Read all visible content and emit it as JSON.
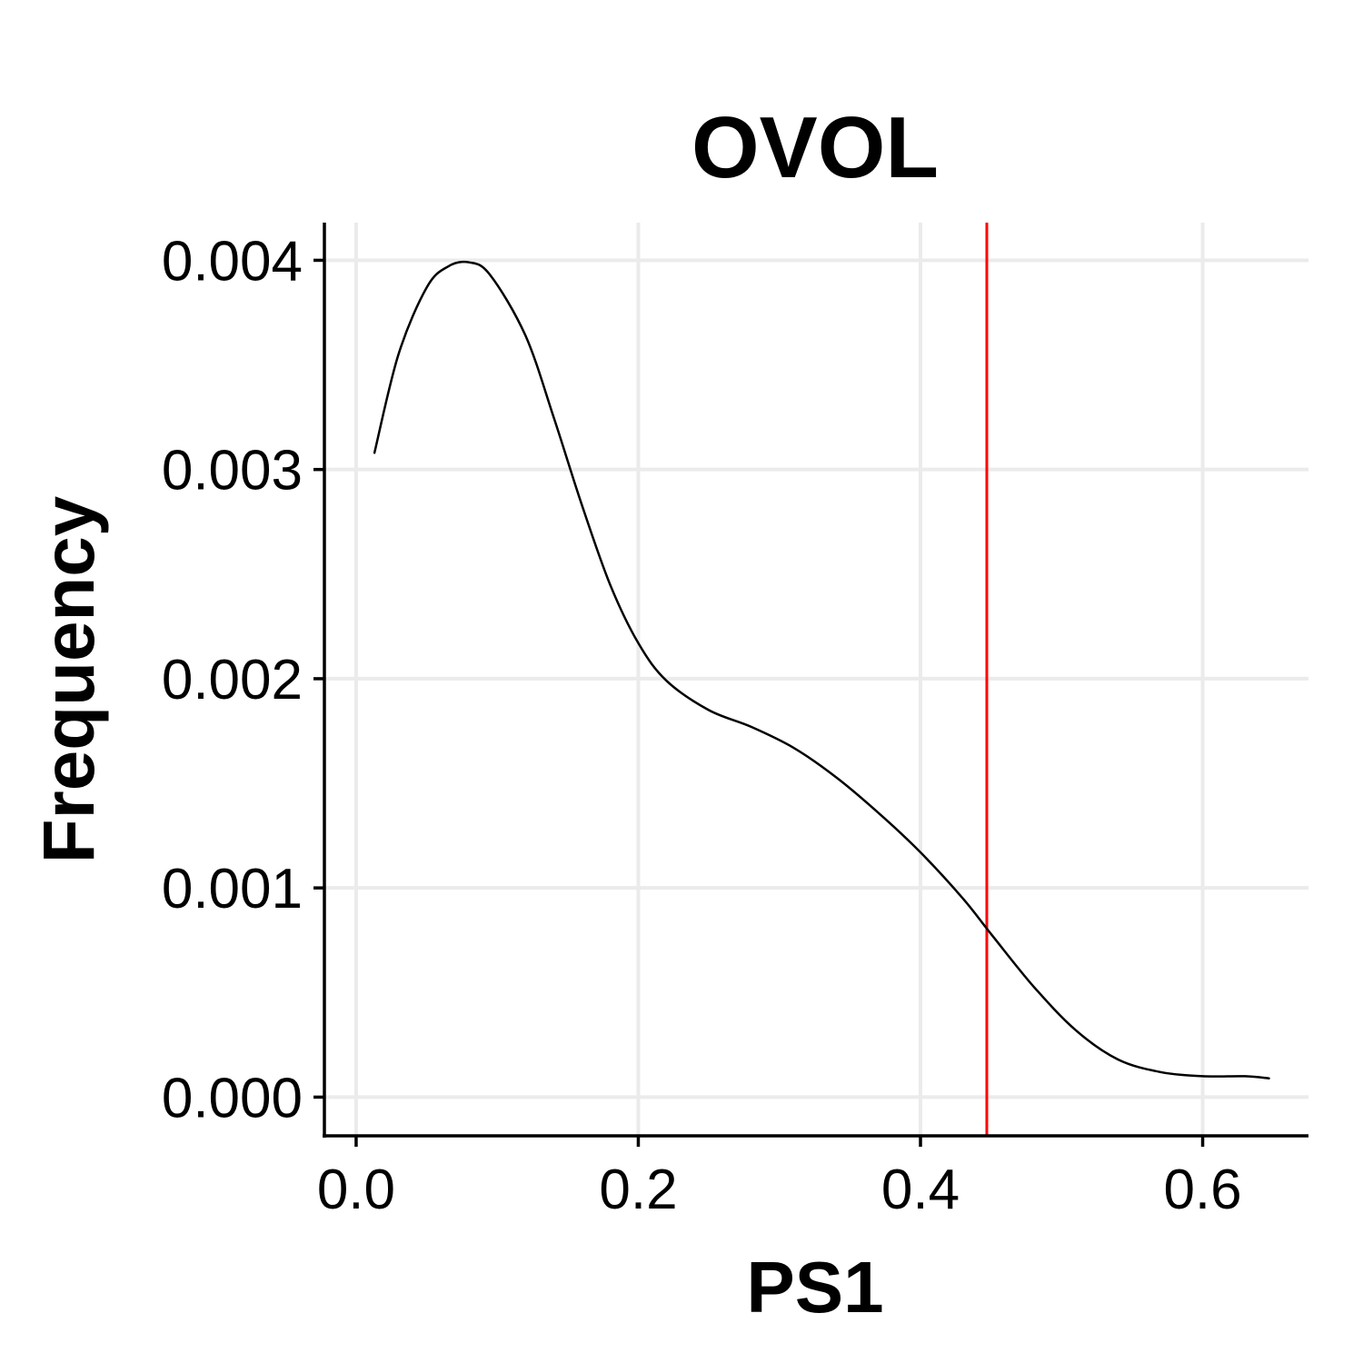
{
  "chart_data": {
    "type": "line",
    "title": "OVOL",
    "xlabel": "PS1",
    "ylabel": "Frequency",
    "xlim": [
      -0.0225,
      0.675
    ],
    "ylim": [
      -0.000185,
      0.00418
    ],
    "x_ticks": [
      0.0,
      0.2,
      0.4,
      0.6
    ],
    "x_tick_labels": [
      "0.0",
      "0.2",
      "0.4",
      "0.6"
    ],
    "y_ticks": [
      0.0,
      0.001,
      0.002,
      0.003,
      0.004
    ],
    "y_tick_labels": [
      "0.000",
      "0.001",
      "0.002",
      "0.003",
      "0.004"
    ],
    "grid": true,
    "legend": "none",
    "series": [
      {
        "color": "#000000",
        "x": [
          0.013,
          0.03,
          0.05,
          0.065,
          0.08,
          0.095,
          0.12,
          0.14,
          0.16,
          0.18,
          0.2,
          0.22,
          0.25,
          0.28,
          0.31,
          0.34,
          0.37,
          0.4,
          0.43,
          0.45,
          0.48,
          0.51,
          0.54,
          0.57,
          0.6,
          0.63,
          0.647
        ],
        "y": [
          0.00308,
          0.00355,
          0.00387,
          0.00397,
          0.00399,
          0.00393,
          0.00364,
          0.00325,
          0.00283,
          0.00245,
          0.00217,
          0.00199,
          0.00185,
          0.00177,
          0.00167,
          0.00153,
          0.00136,
          0.00117,
          0.00095,
          0.00078,
          0.00053,
          0.00032,
          0.00018,
          0.00012,
          0.0001,
          0.0001,
          9e-05
        ]
      }
    ],
    "reference_line": {
      "x": 0.447,
      "color": "#ff0000",
      "orientation": "vertical"
    }
  }
}
